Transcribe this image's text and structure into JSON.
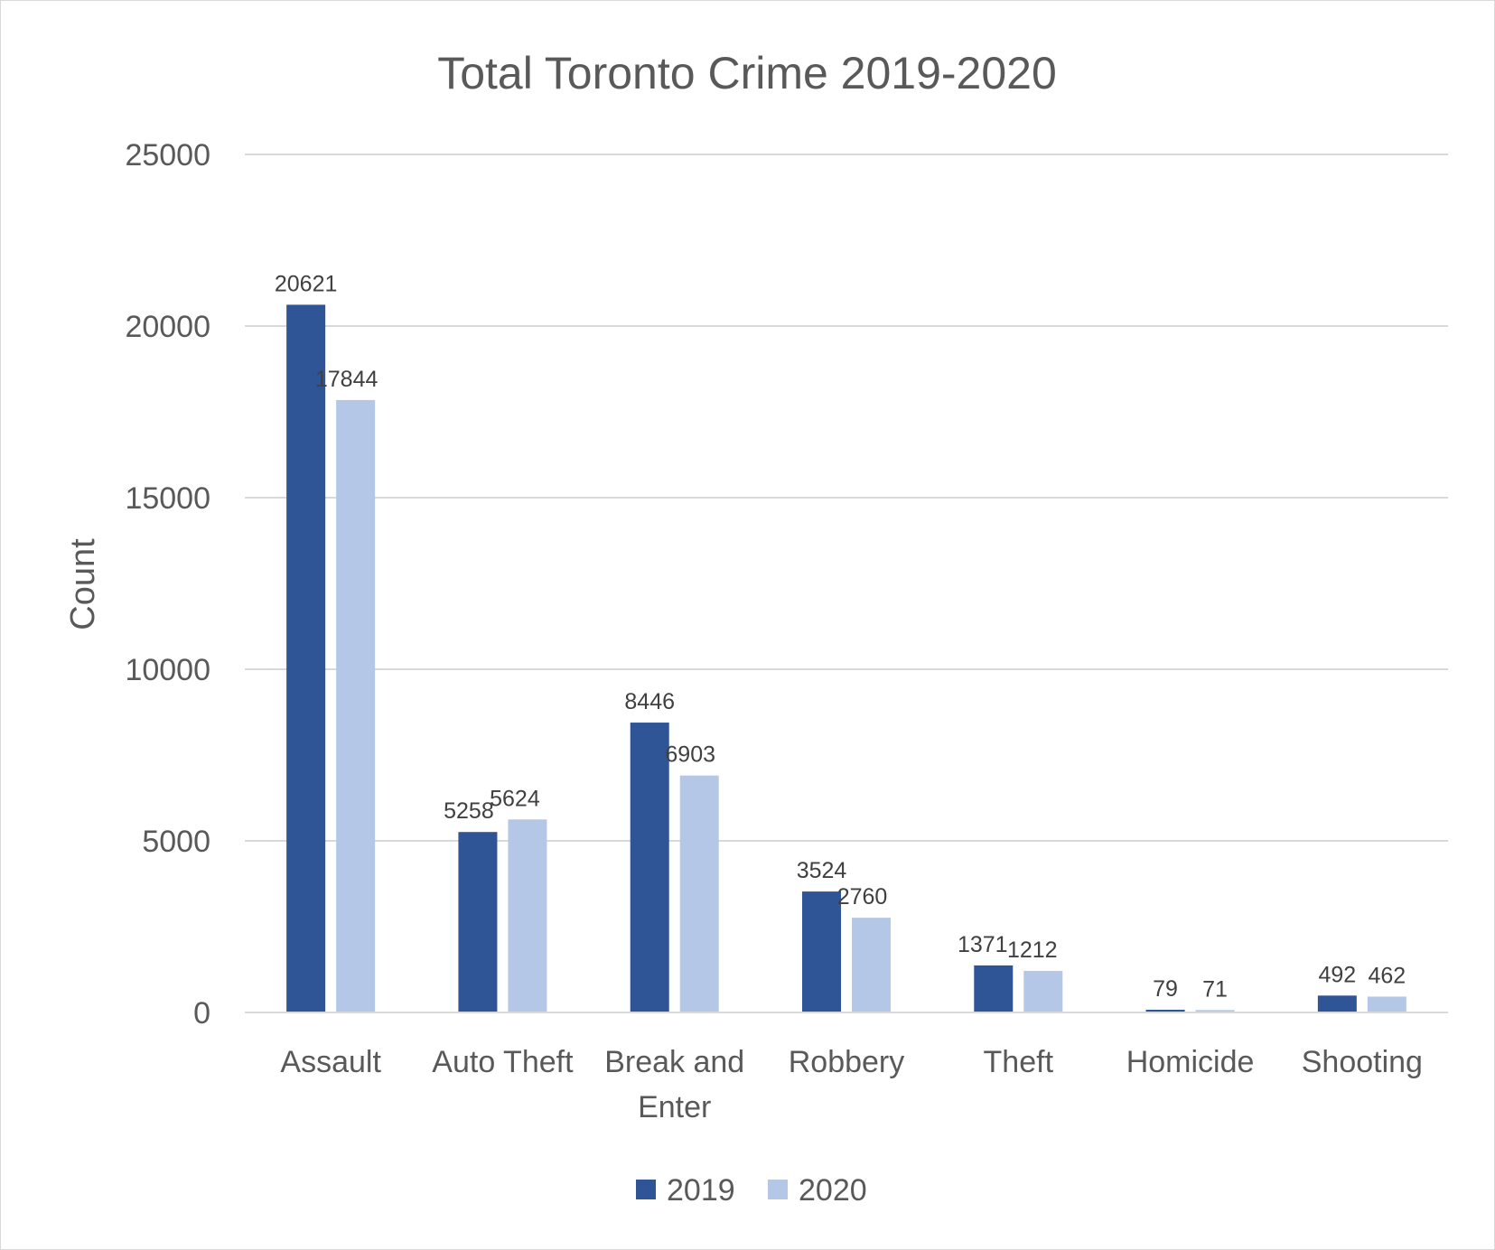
{
  "chart_data": {
    "type": "bar",
    "title": "Total Toronto Crime 2019-2020",
    "xlabel": "",
    "ylabel": "Count",
    "ylim": [
      0,
      25000
    ],
    "yticks": [
      0,
      5000,
      10000,
      15000,
      20000,
      25000
    ],
    "grid": true,
    "legend_position": "bottom",
    "categories": [
      [
        "Assault"
      ],
      [
        "Auto Theft"
      ],
      [
        "Break and",
        "Enter"
      ],
      [
        "Robbery"
      ],
      [
        "Theft"
      ],
      [
        "Homicide"
      ],
      [
        "Shooting"
      ]
    ],
    "series": [
      {
        "name": "2019",
        "color": "#2f5597",
        "values": [
          20621,
          5258,
          8446,
          3524,
          1371,
          79,
          492
        ]
      },
      {
        "name": "2020",
        "color": "#b4c7e7",
        "values": [
          17844,
          5624,
          6903,
          2760,
          1212,
          71,
          462
        ]
      }
    ],
    "gridline_color": "#d9d9d9"
  }
}
